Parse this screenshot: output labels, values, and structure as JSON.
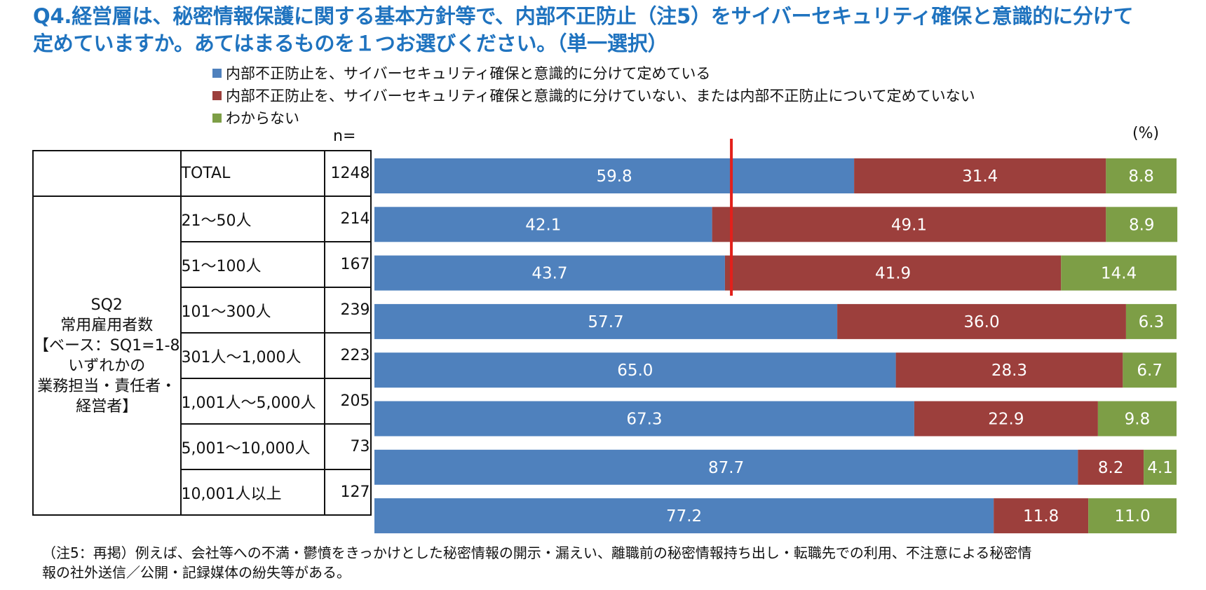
{
  "title": {
    "line1": "Q4.経営層は、秘密情報保護に関する基本方針等で、内部不正防止（注5）をサイバーセキュリティ確保と意識的に分けて",
    "line2": "定めていますか。あてはまるものを１つお選びください。（単一選択）"
  },
  "unit_label": "(%)",
  "n_header": "n=",
  "group_label": [
    "SQ2",
    "常用雇用者数",
    "【ベース：SQ1=1-8",
    "いずれかの",
    "業務担当・責任者・",
    "経営者】"
  ],
  "footnote": {
    "line1": "（注5：再掲）例えば、会社等への不満・鬱憤をきっかけとした秘密情報の開示・漏えい、離職前の秘密情報持ち出し・転職先での利用、不注意による秘密情",
    "line2": "報の社外送信／公開・記録媒体の紛失等がある。"
  },
  "colors": {
    "blue": "#4f81bd",
    "red": "#9c3f3c",
    "green": "#7d9e46",
    "marker": "#e3201b",
    "title": "#1f73bf"
  },
  "chart_data": {
    "type": "bar",
    "orientation": "horizontal",
    "stacked": true,
    "xlim": [
      0,
      100
    ],
    "unit": "(%)",
    "categories": [
      "TOTAL",
      "21～50人",
      "51～100人",
      "101～300人",
      "301人～1,000人",
      "1,001人～5,000人",
      "5,001～10,000人",
      "10,001人以上"
    ],
    "n": [
      "1248",
      "214",
      "167",
      "239",
      "223",
      "205",
      "73",
      "127"
    ],
    "series": [
      {
        "name": "内部不正防止を、サイバーセキュリティ確保と意識的に分けて定めている",
        "color": "#4f81bd",
        "values": [
          59.8,
          42.1,
          43.7,
          57.7,
          65.0,
          67.3,
          87.7,
          77.2
        ],
        "labels": [
          "59.8",
          "42.1",
          "43.7",
          "57.7",
          "65.0",
          "67.3",
          "87.7",
          "77.2"
        ]
      },
      {
        "name": "内部不正防止を、サイバーセキュリティ確保と意識的に分けていない、または内部不正防止について定めていない",
        "color": "#9c3f3c",
        "values": [
          31.4,
          49.1,
          41.9,
          36.0,
          28.3,
          22.9,
          8.2,
          11.8
        ],
        "labels": [
          "31.4",
          "49.1",
          "41.9",
          "36.0",
          "28.3",
          "22.9",
          "8.2",
          "11.8"
        ]
      },
      {
        "name": "わからない",
        "color": "#7d9e46",
        "values": [
          8.8,
          8.9,
          14.4,
          6.3,
          6.7,
          9.8,
          4.1,
          11.0
        ],
        "labels": [
          "8.8",
          "8.9",
          "14.4",
          "6.3",
          "6.7",
          "9.8",
          "4.1",
          "11.0"
        ]
      }
    ],
    "marker_line": {
      "x": 44.5,
      "color": "#e3201b"
    }
  }
}
